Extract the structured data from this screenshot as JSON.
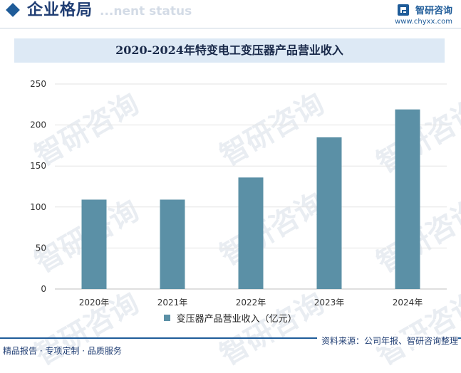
{
  "header": {
    "section_title": "企业格局",
    "section_subtitle": "...nent status",
    "brand_name": "智研咨询",
    "brand_url": "www.chyxx.com"
  },
  "watermark": "智研咨询",
  "footer": {
    "left": "精品报告 · 专项定制 · 品质服务",
    "right": "资料来源：公司年报、智研咨询整理"
  },
  "colors": {
    "bar": "#5b90a6",
    "accent": "#1f5c99",
    "title_bg": "#dde9f5"
  },
  "chart_data": {
    "type": "bar",
    "title": "2020-2024年特变电工变压器产品营业收入",
    "categories": [
      "2020年",
      "2021年",
      "2022年",
      "2023年",
      "2024年"
    ],
    "series": [
      {
        "name": "变压器产品营业收入（亿元）",
        "values": [
          109,
          109,
          136,
          185,
          219
        ]
      }
    ],
    "ylim": [
      0,
      250
    ],
    "yticks": [
      0,
      50,
      100,
      150,
      200,
      250
    ],
    "grid": true,
    "legend": "bottom"
  }
}
